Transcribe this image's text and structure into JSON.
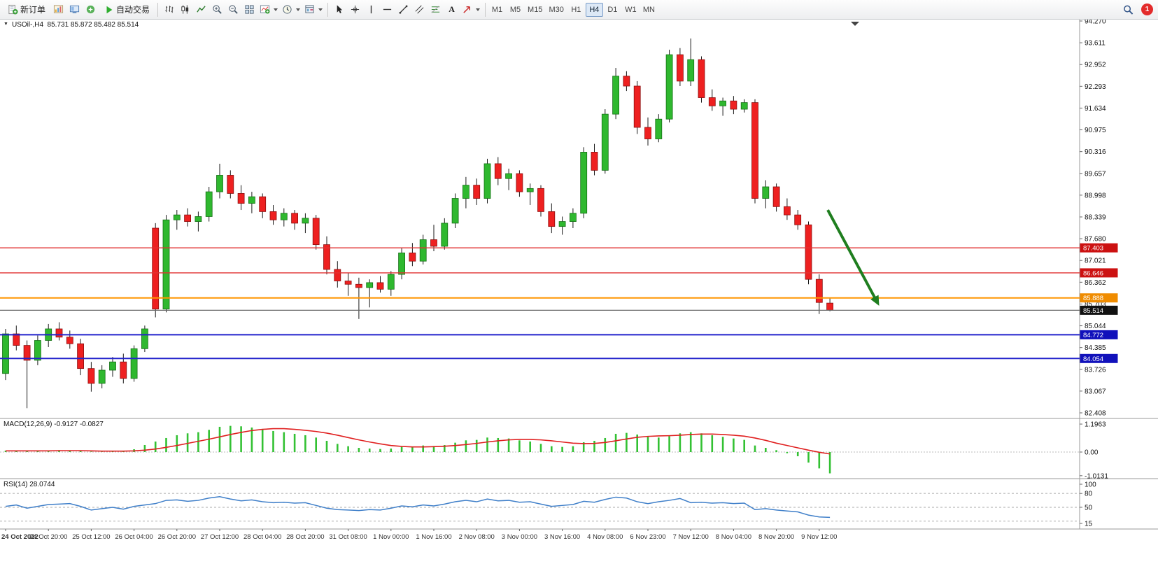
{
  "toolbar": {
    "new_order_label": "新订单",
    "autotrading_label": "自动交易",
    "left_icons": [
      "market-watch-icon",
      "navigator-icon",
      "terminal-icon"
    ],
    "chart_tool_icons": [
      "bar-chart-icon",
      "candlestick-icon",
      "line-chart-icon",
      "zoom-in-icon",
      "zoom-out-icon",
      "tile-windows-icon",
      "indicators-icon",
      "timeframes-icon",
      "templates-icon"
    ],
    "draw_tool_icons": [
      "cursor-icon",
      "crosshair-icon",
      "vertical-line-icon",
      "horizontal-line-icon",
      "trendline-icon",
      "channel-icon",
      "fibonacci-icon",
      "text-icon",
      "arrow-icon"
    ],
    "dropdown_icons": [
      "indicators-icon",
      "timeframes-icon",
      "templates-icon",
      "arrow-icon"
    ],
    "text_tool_label": "A",
    "timeframes": [
      "M1",
      "M5",
      "M15",
      "M30",
      "H1",
      "H4",
      "D1",
      "W1",
      "MN"
    ],
    "active_timeframe": "H4",
    "notification_count": "1"
  },
  "chart": {
    "title": "USOil-,H4  85.731 85.872 85.482 85.514",
    "symbol": "USOil-",
    "period": "H4",
    "ohlc_display": "85.731 85.872 85.482 85.514"
  },
  "price_axis": {
    "ticks": [
      "94.270",
      "93.611",
      "92.952",
      "92.293",
      "91.634",
      "90.975",
      "90.316",
      "89.657",
      "88.998",
      "88.339",
      "87.680",
      "87.021",
      "86.362",
      "85.703",
      "85.044",
      "84.385",
      "83.726",
      "83.067",
      "82.408"
    ]
  },
  "hlines": [
    {
      "price": 87.403,
      "label": "87.403",
      "line_color": "#e03232",
      "tag_color": "#cc1111",
      "width": 1.3
    },
    {
      "price": 86.646,
      "label": "86.646",
      "line_color": "#e03232",
      "tag_color": "#cc1111",
      "width": 1.3
    },
    {
      "price": 85.888,
      "label": "85.888",
      "line_color": "#ff9500",
      "tag_color": "#f08c00",
      "width": 2
    },
    {
      "price": 85.514,
      "label": "85.514",
      "line_color": "#666666",
      "tag_color": "#111111",
      "width": 1.2
    },
    {
      "price": 84.772,
      "label": "84.772",
      "line_color": "#2222cc",
      "tag_color": "#1111bb",
      "width": 2
    },
    {
      "price": 84.054,
      "label": "84.054",
      "line_color": "#2222cc",
      "tag_color": "#1111bb",
      "width": 2
    }
  ],
  "arrow": {
    "from_bar": 76.8,
    "from_price": 88.55,
    "to_bar": 81.6,
    "to_price": 85.65,
    "color": "#1f7e1f"
  },
  "panels": {
    "macd": {
      "text": "MACD(12,26,9) -0.9127 -0.0827",
      "y_ticks": [
        "1.1963",
        "0.00",
        "-1.0131"
      ]
    },
    "rsi": {
      "text": "RSI(14) 28.0744",
      "y_ticks": [
        "100",
        "80",
        "50",
        "15"
      ],
      "levels": [
        80,
        50,
        20
      ]
    }
  },
  "chart_data": [
    {
      "type": "candlestick",
      "name": "USOil- H4",
      "ylim": [
        82.408,
        94.27
      ],
      "up_color": "#2fb82f",
      "down_color": "#ee2020",
      "label_every": 4,
      "x_labels": [
        "24 Oct 2022",
        "24 Oct 20:00",
        "25 Oct 12:00",
        "26 Oct 04:00",
        "26 Oct 20:00",
        "27 Oct 12:00",
        "28 Oct 04:00",
        "28 Oct 20:00",
        "31 Oct 08:00",
        "1 Nov 00:00",
        "1 Nov 16:00",
        "2 Nov 08:00",
        "3 Nov 00:00",
        "3 Nov 16:00",
        "4 Nov 08:00",
        "6 Nov 23:00",
        "7 Nov 12:00",
        "8 Nov 04:00",
        "8 Nov 20:00",
        "9 Nov 12:00"
      ],
      "ohlc": [
        [
          83.6,
          84.95,
          83.4,
          84.8
        ],
        [
          84.8,
          85.05,
          84.3,
          84.45
        ],
        [
          84.45,
          84.6,
          82.55,
          84.0
        ],
        [
          84.0,
          84.75,
          83.85,
          84.6
        ],
        [
          84.6,
          85.1,
          84.4,
          84.95
        ],
        [
          84.95,
          85.15,
          84.6,
          84.7
        ],
        [
          84.7,
          84.9,
          84.35,
          84.5
        ],
        [
          84.5,
          84.65,
          83.55,
          83.75
        ],
        [
          83.75,
          83.95,
          83.05,
          83.3
        ],
        [
          83.3,
          83.85,
          83.15,
          83.7
        ],
        [
          83.7,
          84.1,
          83.5,
          83.95
        ],
        [
          83.95,
          84.2,
          83.3,
          83.45
        ],
        [
          83.45,
          84.45,
          83.35,
          84.35
        ],
        [
          84.35,
          85.05,
          84.25,
          84.95
        ],
        [
          88.0,
          88.15,
          85.3,
          85.55
        ],
        [
          85.55,
          88.4,
          85.45,
          88.25
        ],
        [
          88.25,
          88.55,
          87.95,
          88.4
        ],
        [
          88.4,
          88.6,
          88.05,
          88.2
        ],
        [
          88.2,
          88.5,
          87.9,
          88.35
        ],
        [
          88.35,
          89.25,
          88.2,
          89.1
        ],
        [
          89.1,
          89.95,
          88.9,
          89.6
        ],
        [
          89.6,
          89.75,
          88.9,
          89.05
        ],
        [
          89.05,
          89.3,
          88.55,
          88.75
        ],
        [
          88.75,
          89.1,
          88.45,
          88.95
        ],
        [
          88.95,
          89.05,
          88.3,
          88.5
        ],
        [
          88.5,
          88.7,
          88.1,
          88.25
        ],
        [
          88.25,
          88.6,
          88.05,
          88.45
        ],
        [
          88.45,
          88.55,
          87.95,
          88.15
        ],
        [
          88.15,
          88.45,
          87.85,
          88.3
        ],
        [
          88.3,
          88.4,
          87.35,
          87.5
        ],
        [
          87.5,
          87.75,
          86.6,
          86.75
        ],
        [
          86.75,
          87.0,
          86.2,
          86.4
        ],
        [
          86.4,
          86.65,
          85.95,
          86.3
        ],
        [
          86.3,
          86.5,
          85.25,
          86.2
        ],
        [
          86.2,
          86.45,
          85.6,
          86.35
        ],
        [
          86.35,
          86.55,
          86.05,
          86.15
        ],
        [
          86.15,
          86.7,
          85.95,
          86.6
        ],
        [
          86.6,
          87.4,
          86.45,
          87.25
        ],
        [
          87.25,
          87.55,
          86.85,
          87.0
        ],
        [
          87.0,
          87.8,
          86.9,
          87.65
        ],
        [
          87.65,
          88.1,
          87.3,
          87.45
        ],
        [
          87.45,
          88.3,
          87.35,
          88.15
        ],
        [
          88.15,
          89.05,
          88.0,
          88.9
        ],
        [
          88.9,
          89.55,
          88.6,
          89.3
        ],
        [
          89.3,
          89.5,
          88.7,
          88.9
        ],
        [
          88.9,
          90.1,
          88.75,
          89.95
        ],
        [
          89.95,
          90.15,
          89.3,
          89.5
        ],
        [
          89.5,
          89.8,
          89.15,
          89.65
        ],
        [
          89.65,
          89.75,
          88.95,
          89.1
        ],
        [
          89.1,
          89.35,
          88.7,
          89.2
        ],
        [
          89.2,
          89.3,
          88.35,
          88.5
        ],
        [
          88.5,
          88.75,
          87.85,
          88.05
        ],
        [
          88.05,
          88.35,
          87.8,
          88.2
        ],
        [
          88.2,
          88.6,
          88.0,
          88.45
        ],
        [
          88.45,
          90.45,
          88.3,
          90.3
        ],
        [
          90.3,
          90.55,
          89.6,
          89.75
        ],
        [
          89.75,
          91.6,
          89.65,
          91.45
        ],
        [
          91.45,
          92.85,
          91.3,
          92.6
        ],
        [
          92.6,
          92.75,
          92.15,
          92.3
        ],
        [
          92.3,
          92.45,
          90.85,
          91.05
        ],
        [
          91.05,
          91.35,
          90.5,
          90.7
        ],
        [
          90.7,
          91.45,
          90.6,
          91.3
        ],
        [
          91.3,
          93.4,
          91.2,
          93.25
        ],
        [
          93.25,
          93.45,
          92.3,
          92.45
        ],
        [
          92.45,
          93.74,
          92.3,
          93.1
        ],
        [
          93.1,
          93.2,
          91.8,
          91.95
        ],
        [
          91.95,
          92.2,
          91.55,
          91.7
        ],
        [
          91.7,
          91.95,
          91.4,
          91.85
        ],
        [
          91.85,
          92.0,
          91.45,
          91.6
        ],
        [
          91.6,
          91.9,
          91.5,
          91.8
        ],
        [
          91.8,
          91.9,
          88.75,
          88.9
        ],
        [
          88.9,
          89.45,
          88.6,
          89.25
        ],
        [
          89.25,
          89.35,
          88.5,
          88.65
        ],
        [
          88.65,
          88.9,
          88.25,
          88.4
        ],
        [
          88.4,
          88.55,
          87.95,
          88.1
        ],
        [
          88.1,
          88.2,
          86.3,
          86.45
        ],
        [
          86.45,
          86.6,
          85.4,
          85.75
        ],
        [
          85.731,
          85.872,
          85.482,
          85.514
        ]
      ]
    },
    {
      "type": "bar",
      "name": "MACD(12,26,9)",
      "current": "-0.9127 -0.0827",
      "ylim": [
        -1.0131,
        1.1963
      ],
      "colors": {
        "histogram": "#33c133",
        "signal": "#e02020"
      },
      "values": [
        0.06,
        0.05,
        0.04,
        0.05,
        0.07,
        0.08,
        0.07,
        0.05,
        0.02,
        0.01,
        0.03,
        0.05,
        0.12,
        0.3,
        0.45,
        0.6,
        0.72,
        0.8,
        0.85,
        0.95,
        1.08,
        1.12,
        1.1,
        1.05,
        0.98,
        0.9,
        0.85,
        0.78,
        0.72,
        0.62,
        0.48,
        0.35,
        0.25,
        0.18,
        0.15,
        0.13,
        0.15,
        0.22,
        0.24,
        0.28,
        0.26,
        0.3,
        0.4,
        0.5,
        0.52,
        0.62,
        0.6,
        0.58,
        0.5,
        0.45,
        0.35,
        0.25,
        0.22,
        0.25,
        0.42,
        0.48,
        0.6,
        0.78,
        0.82,
        0.75,
        0.65,
        0.62,
        0.68,
        0.8,
        0.85,
        0.8,
        0.72,
        0.65,
        0.58,
        0.52,
        0.28,
        0.18,
        0.08,
        -0.05,
        -0.18,
        -0.45,
        -0.7,
        -0.9127
      ],
      "signal": [
        0.05,
        0.05,
        0.05,
        0.05,
        0.05,
        0.06,
        0.06,
        0.06,
        0.05,
        0.04,
        0.04,
        0.04,
        0.05,
        0.08,
        0.13,
        0.2,
        0.28,
        0.37,
        0.46,
        0.55,
        0.65,
        0.75,
        0.84,
        0.92,
        0.97,
        1.0,
        1.0,
        0.97,
        0.93,
        0.88,
        0.81,
        0.72,
        0.62,
        0.52,
        0.43,
        0.35,
        0.28,
        0.24,
        0.22,
        0.22,
        0.23,
        0.25,
        0.28,
        0.32,
        0.37,
        0.43,
        0.48,
        0.52,
        0.54,
        0.54,
        0.52,
        0.48,
        0.43,
        0.38,
        0.36,
        0.37,
        0.41,
        0.48,
        0.56,
        0.63,
        0.67,
        0.69,
        0.7,
        0.72,
        0.75,
        0.77,
        0.77,
        0.75,
        0.72,
        0.68,
        0.6,
        0.5,
        0.38,
        0.28,
        0.18,
        0.08,
        -0.01,
        -0.0827
      ]
    },
    {
      "type": "line",
      "name": "RSI(14)",
      "current": "28.0744",
      "ylim": [
        15,
        100
      ],
      "color": "#3f7fc9",
      "values": [
        52,
        55,
        48,
        52,
        56,
        57,
        58,
        52,
        44,
        47,
        50,
        46,
        52,
        55,
        58,
        65,
        66,
        63,
        65,
        70,
        73,
        68,
        64,
        66,
        62,
        60,
        61,
        59,
        60,
        54,
        48,
        45,
        44,
        43,
        45,
        44,
        48,
        53,
        51,
        55,
        53,
        57,
        62,
        65,
        62,
        68,
        64,
        65,
        61,
        62,
        57,
        52,
        54,
        56,
        63,
        61,
        67,
        72,
        70,
        62,
        58,
        62,
        65,
        69,
        60,
        61,
        59,
        60,
        58,
        59,
        45,
        47,
        44,
        42,
        40,
        33,
        29,
        28.0744
      ]
    }
  ]
}
